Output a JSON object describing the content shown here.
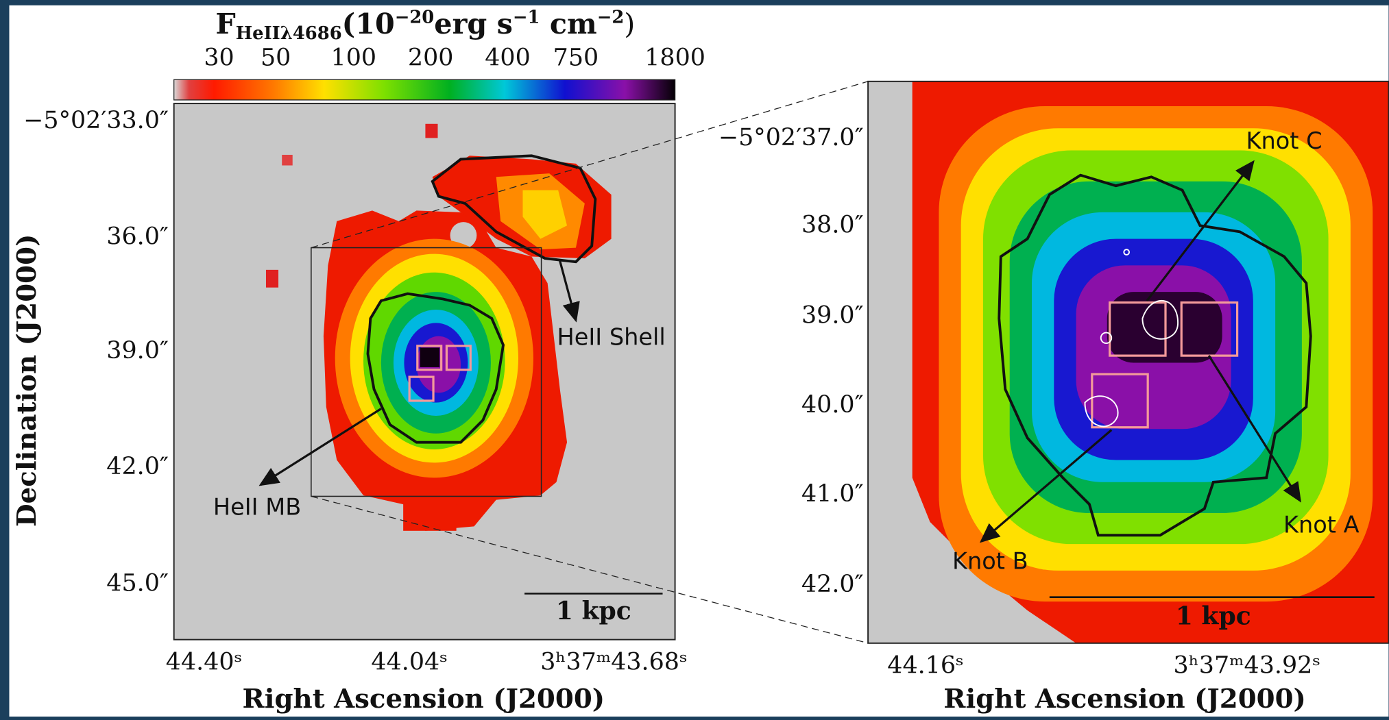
{
  "colorbar": {
    "label": [
      "F",
      "HeIIλ4686",
      "(10",
      "−20",
      "erg s",
      "−1",
      " cm",
      "−2",
      ")"
    ],
    "ticks": [
      "30",
      "50",
      "100",
      "200",
      "400",
      "750",
      "1800"
    ]
  },
  "left_panel": {
    "yticks": [
      "−5°02′33.0″",
      "36.0″",
      "39.0″",
      "42.0″",
      "45.0″"
    ],
    "xticks": [
      "44.40ˢ",
      "44.04ˢ",
      "3ʰ37ᵐ43.68ˢ"
    ],
    "ylabel": "Declination (J2000)",
    "xlabel": "Right Ascension (J2000)",
    "annotations": [
      "HeII Shell",
      "HeII MB"
    ],
    "scalebar": "1 kpc"
  },
  "right_panel": {
    "yticks": [
      "−5°02′37.0″",
      "38.0″",
      "39.0″",
      "40.0″",
      "41.0″",
      "42.0″"
    ],
    "xticks": [
      "44.16ˢ",
      "3ʰ37ᵐ43.92ˢ"
    ],
    "xlabel": "Right Ascension (J2000)",
    "annotations": [
      "Knot C",
      "Knot A",
      "Knot B"
    ],
    "scalebar": "1 kpc"
  }
}
